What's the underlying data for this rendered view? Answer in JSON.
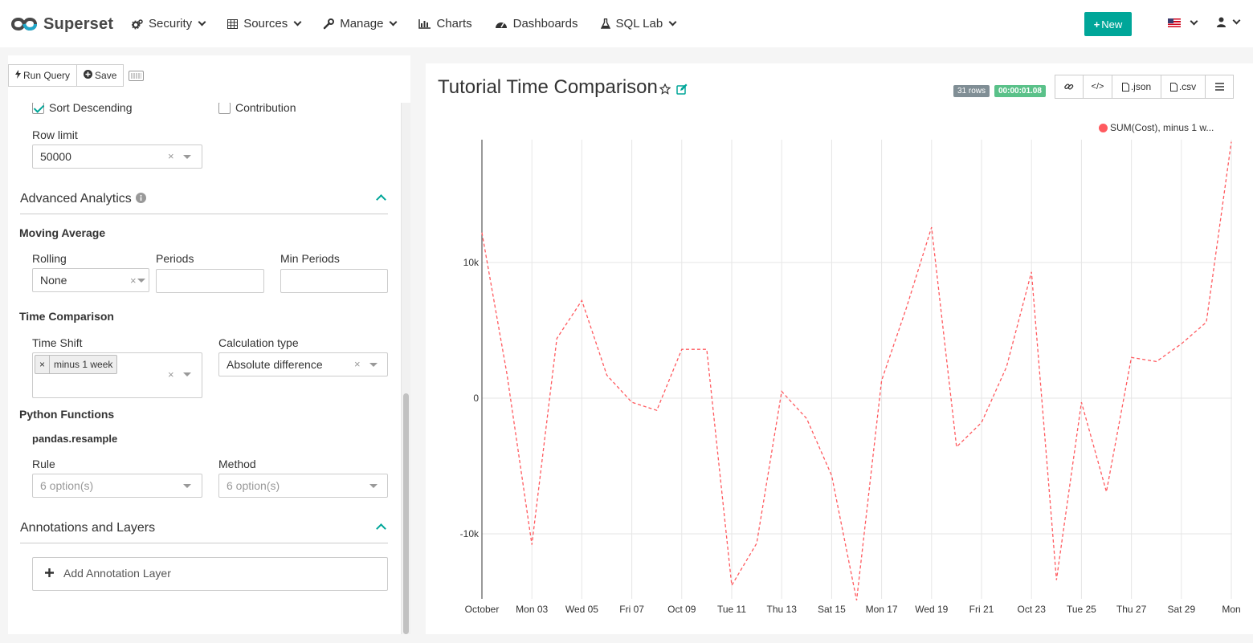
{
  "navbar": {
    "brand": "Superset",
    "items": [
      {
        "label": "Security",
        "icon": "cogs-icon",
        "dropdown": true
      },
      {
        "label": "Sources",
        "icon": "table-icon",
        "dropdown": true
      },
      {
        "label": "Manage",
        "icon": "wrench-icon",
        "dropdown": true
      },
      {
        "label": "Charts",
        "icon": "bar-chart-icon",
        "dropdown": false
      },
      {
        "label": "Dashboards",
        "icon": "dashboard-icon",
        "dropdown": false
      },
      {
        "label": "SQL Lab",
        "icon": "flask-icon",
        "dropdown": true
      }
    ],
    "new_label": "New",
    "language_icon": "us-flag-icon",
    "user_icon": "user-icon"
  },
  "toolbar": {
    "run_query_label": "Run Query",
    "save_label": "Save"
  },
  "controls": {
    "sort_descending": {
      "label": "Sort Descending",
      "checked": true
    },
    "contribution": {
      "label": "Contribution",
      "checked": false
    },
    "row_limit": {
      "label": "Row limit",
      "value": "50000"
    },
    "advanced_analytics": {
      "title": "Advanced Analytics",
      "moving_average": {
        "title": "Moving Average",
        "rolling": {
          "label": "Rolling",
          "value": "None"
        },
        "periods": {
          "label": "Periods",
          "value": ""
        },
        "min_periods": {
          "label": "Min Periods",
          "value": ""
        }
      },
      "time_comparison": {
        "title": "Time Comparison",
        "time_shift": {
          "label": "Time Shift",
          "tags": [
            "minus 1 week"
          ]
        },
        "calculation_type": {
          "label": "Calculation type",
          "value": "Absolute difference"
        }
      },
      "python_functions": {
        "title": "Python Functions",
        "subtitle": "pandas.resample",
        "rule": {
          "label": "Rule",
          "placeholder": "6 option(s)"
        },
        "method": {
          "label": "Method",
          "placeholder": "6 option(s)"
        }
      }
    },
    "annotations": {
      "title": "Annotations and Layers",
      "add_label": "Add Annotation Layer"
    }
  },
  "chart": {
    "title": "Tutorial Time Comparison",
    "rows_badge": "31 rows",
    "time_badge": "00:00:01.08",
    "actions": {
      "json": ".json",
      "csv": ".csv"
    },
    "colors": {
      "series": "#ff5a5f",
      "rows_badge": "#808e95",
      "time_badge": "#5ac189",
      "accent": "#00a699"
    }
  },
  "chart_data": {
    "type": "line",
    "x": [
      "Oct 01",
      "Oct 02",
      "Oct 03",
      "Oct 04",
      "Oct 05",
      "Oct 06",
      "Oct 07",
      "Oct 08",
      "Oct 09",
      "Oct 10",
      "Oct 11",
      "Oct 12",
      "Oct 13",
      "Oct 14",
      "Oct 15",
      "Oct 16",
      "Oct 17",
      "Oct 18",
      "Oct 19",
      "Oct 20",
      "Oct 21",
      "Oct 22",
      "Oct 23",
      "Oct 24",
      "Oct 25",
      "Oct 26",
      "Oct 27",
      "Oct 28",
      "Oct 29",
      "Oct 30",
      "Oct 31"
    ],
    "x_tick_labels": [
      "October",
      "Mon 03",
      "Wed 05",
      "Fri 07",
      "Oct 09",
      "Tue 11",
      "Thu 13",
      "Sat 15",
      "Mon 17",
      "Wed 19",
      "Fri 21",
      "Oct 23",
      "Tue 25",
      "Thu 27",
      "Sat 29",
      "Mon"
    ],
    "series": [
      {
        "name": "SUM(Cost), minus 1 w...",
        "style": "dashed",
        "values": [
          12200,
          1800,
          -10800,
          4400,
          7200,
          1700,
          -300,
          -900,
          3600,
          3600,
          -13800,
          -10700,
          500,
          -1500,
          -5700,
          -14900,
          1300,
          6700,
          12600,
          -3600,
          -1800,
          2300,
          9300,
          -13400,
          -300,
          -6900,
          3000,
          2700,
          4000,
          5600,
          18900
        ]
      }
    ],
    "y_ticks": [
      "10k",
      "0",
      "-10k"
    ],
    "ylim": [
      -15000,
      19000
    ],
    "grid": true,
    "legend": "top-right"
  }
}
